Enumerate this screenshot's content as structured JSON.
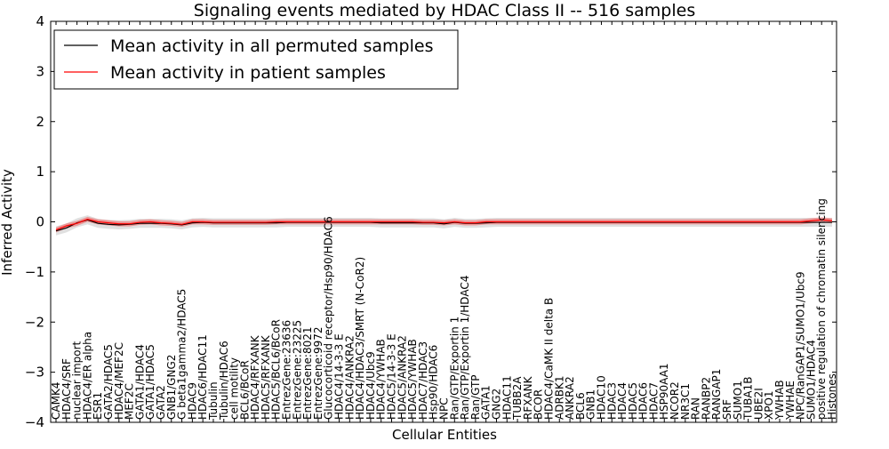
{
  "chart_data": {
    "type": "line",
    "title": "Signaling events mediated by HDAC Class II -- 516 samples",
    "xlabel": "Cellular Entities",
    "ylabel": "Inferred Activity",
    "ylim": [
      -4,
      4
    ],
    "yticks": [
      4,
      3,
      2,
      1,
      0,
      -1,
      -2,
      -3,
      -4
    ],
    "ytick_labels": [
      "4",
      "3",
      "2",
      "1",
      "0",
      "−1",
      "−2",
      "−3",
      "−4"
    ],
    "grid": false,
    "legend_position": "top-left",
    "categories": [
      "CAMK4",
      "HDAC4/SRF",
      "nuclear import",
      "HDAC4/ER alpha",
      "ESR1",
      "GATA2/HDAC5",
      "HDAC4/MEF2C",
      "MEF2C",
      "GATA1/HDAC4",
      "GATA1/HDAC5",
      "GATA2",
      "GNB1/GNG2",
      "G beta1gamma2/HDAC5",
      "HDAC9",
      "HDAC6/HDAC11",
      "Tubulin",
      "Tubulin/HDAC6",
      "cell motility",
      "BCL6/BCoR",
      "HDAC4/RFXANK",
      "HDAC5/RFXANK",
      "HDAC5/BCL6/BCoR",
      "EntrezGene:23636",
      "EntrezGene:23225",
      "EntrezGene:8021",
      "EntrezGene:9972",
      "Glucocorticoid receptor/Hsp90/HDAC6",
      "HDAC4/14-3-3 E",
      "HDAC4/ANKRA2",
      "HDAC4/HDAC3/SMRT (N-CoR2)",
      "HDAC4/Ubc9",
      "HDAC4/YWHAB",
      "HDAC5/14-3-3 E",
      "HDAC5/ANKRA2",
      "HDAC5/YWHAB",
      "HDAC7/HDAC3",
      "Hsp90/HDAC6",
      "NPC",
      "Ran/GTP/Exportin 1",
      "Ran/GTP/Exportin 1/HDAC4",
      "Ran/GTP",
      "GATA1",
      "GNG2",
      "HDAC11",
      "TUBB2A",
      "RFXANK",
      "BCOR",
      "HDAC4/CaMK II delta B",
      "ADRBK1",
      "ANKRA2",
      "BCL6",
      "GNB1",
      "HDAC10",
      "HDAC3",
      "HDAC4",
      "HDAC5",
      "HDAC6",
      "HDAC7",
      "HSP90AA1",
      "NCOR2",
      "NR3C1",
      "RAN",
      "RANBP2",
      "RANGAP1",
      "SRF",
      "SUMO1",
      "TUBA1B",
      "UBE2I",
      "XPO1",
      "YWHAB",
      "YWHAE",
      "NPC/RanGAP1/SUMO1/Ubc9",
      "SUMO1/HDAC4",
      "positive regulation of chromatin silencing",
      "Histones"
    ],
    "series": [
      {
        "name": "Mean activity in all permuted samples",
        "color": "#000000",
        "values": [
          -0.18,
          -0.12,
          -0.02,
          0.04,
          -0.03,
          -0.05,
          -0.06,
          -0.05,
          -0.03,
          -0.03,
          -0.03,
          -0.04,
          -0.06,
          -0.02,
          -0.01,
          -0.02,
          -0.02,
          -0.02,
          -0.02,
          -0.02,
          -0.02,
          -0.02,
          -0.01,
          -0.01,
          -0.01,
          -0.01,
          -0.01,
          -0.01,
          -0.01,
          -0.01,
          -0.01,
          -0.02,
          -0.02,
          -0.02,
          -0.02,
          -0.02,
          -0.02,
          -0.04,
          -0.01,
          -0.03,
          -0.03,
          -0.02,
          -0.01,
          -0.01,
          -0.01,
          -0.01,
          -0.01,
          -0.01,
          -0.01,
          -0.01,
          -0.01,
          -0.01,
          -0.01,
          -0.01,
          -0.01,
          -0.01,
          -0.01,
          -0.01,
          -0.01,
          -0.01,
          -0.01,
          -0.01,
          -0.01,
          -0.01,
          -0.01,
          -0.01,
          -0.01,
          -0.01,
          -0.01,
          -0.01,
          -0.01,
          -0.01,
          -0.01,
          -0.01,
          -0.01
        ],
        "band": 0.09
      },
      {
        "name": "Mean activity in patient samples",
        "color": "#ff0000",
        "values": [
          -0.16,
          -0.08,
          -0.03,
          0.05,
          0.0,
          -0.02,
          -0.04,
          -0.04,
          -0.01,
          0.0,
          -0.02,
          -0.03,
          -0.05,
          0.0,
          0.0,
          -0.01,
          -0.01,
          -0.01,
          -0.01,
          -0.01,
          -0.01,
          0.0,
          0.0,
          0.0,
          0.0,
          0.0,
          0.0,
          0.0,
          0.0,
          0.0,
          0.0,
          0.0,
          0.0,
          0.0,
          0.0,
          -0.01,
          -0.01,
          -0.02,
          0.0,
          -0.02,
          -0.02,
          0.0,
          0.0,
          0.0,
          0.0,
          0.0,
          0.0,
          0.0,
          0.0,
          0.0,
          0.0,
          0.0,
          0.0,
          0.0,
          0.0,
          0.0,
          0.0,
          0.0,
          0.0,
          0.0,
          0.0,
          0.0,
          0.0,
          0.0,
          0.0,
          0.0,
          0.0,
          0.0,
          0.0,
          0.0,
          0.0,
          0.0,
          0.02,
          0.04,
          0.02
        ],
        "band": 0.05
      }
    ]
  }
}
